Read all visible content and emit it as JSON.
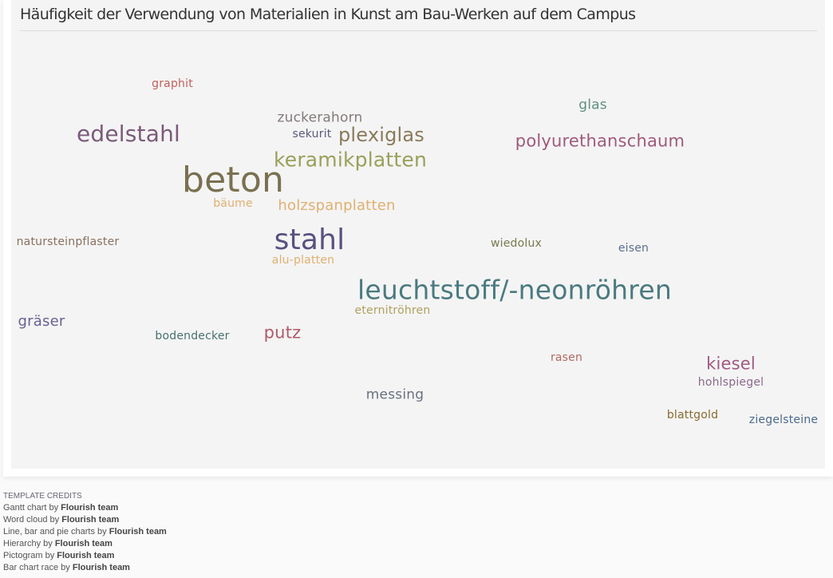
{
  "chart_data": {
    "type": "wordcloud",
    "title": "Häufigkeit der Verwendung von Materialien in Kunst am Bau-Werken auf dem Campus",
    "words": [
      {
        "text": "graphit",
        "weight": 1,
        "color": "#c0605d"
      },
      {
        "text": "glas",
        "weight": 2,
        "color": "#5f8f7f"
      },
      {
        "text": "zuckerahorn",
        "weight": 2,
        "color": "#857a7a"
      },
      {
        "text": "edelstahl",
        "weight": 5,
        "color": "#7b5a7a"
      },
      {
        "text": "sekurit",
        "weight": 1,
        "color": "#5a5a7a"
      },
      {
        "text": "plexiglas",
        "weight": 4,
        "color": "#8a7a5a"
      },
      {
        "text": "polyurethanschaum",
        "weight": 3,
        "color": "#a05a7a"
      },
      {
        "text": "keramikplatten",
        "weight": 4,
        "color": "#9aa05a"
      },
      {
        "text": "beton",
        "weight": 9,
        "color": "#7a7050"
      },
      {
        "text": "bäume",
        "weight": 1,
        "color": "#e0b070"
      },
      {
        "text": "holzspanplatten",
        "weight": 2,
        "color": "#e0b070"
      },
      {
        "text": "natursteinpflaster",
        "weight": 1,
        "color": "#8a7060"
      },
      {
        "text": "stahl",
        "weight": 7,
        "color": "#5a5080"
      },
      {
        "text": "wiedolux",
        "weight": 1,
        "color": "#7a7a50"
      },
      {
        "text": "eisen",
        "weight": 1,
        "color": "#5a7090"
      },
      {
        "text": "alu-platten",
        "weight": 1,
        "color": "#e0b070"
      },
      {
        "text": "leuchtstoff/-neonröhren",
        "weight": 6,
        "color": "#4a7a80"
      },
      {
        "text": "eternitröhren",
        "weight": 1,
        "color": "#b0a060"
      },
      {
        "text": "gräser",
        "weight": 2,
        "color": "#6a6090"
      },
      {
        "text": "bodendecker",
        "weight": 1,
        "color": "#4a7070"
      },
      {
        "text": "putz",
        "weight": 3,
        "color": "#b05a6a"
      },
      {
        "text": "rasen",
        "weight": 1,
        "color": "#b06a60"
      },
      {
        "text": "kiesel",
        "weight": 3,
        "color": "#a05a80"
      },
      {
        "text": "hohlspiegel",
        "weight": 1,
        "color": "#8a6a8a"
      },
      {
        "text": "messing",
        "weight": 2,
        "color": "#6a7080"
      },
      {
        "text": "blattgold",
        "weight": 1,
        "color": "#8a6a30"
      },
      {
        "text": "ziegelsteine",
        "weight": 1,
        "color": "#4a6a8a"
      }
    ]
  },
  "credits": {
    "heading": "TEMPLATE CREDITS",
    "by": "by",
    "items": [
      {
        "template": "Gantt chart",
        "author": "Flourish team"
      },
      {
        "template": "Word cloud",
        "author": "Flourish team"
      },
      {
        "template": "Line, bar and pie charts",
        "author": "Flourish team"
      },
      {
        "template": "Hierarchy",
        "author": "Flourish team"
      },
      {
        "template": "Pictogram",
        "author": "Flourish team"
      },
      {
        "template": "Bar chart race",
        "author": "Flourish team"
      }
    ]
  }
}
